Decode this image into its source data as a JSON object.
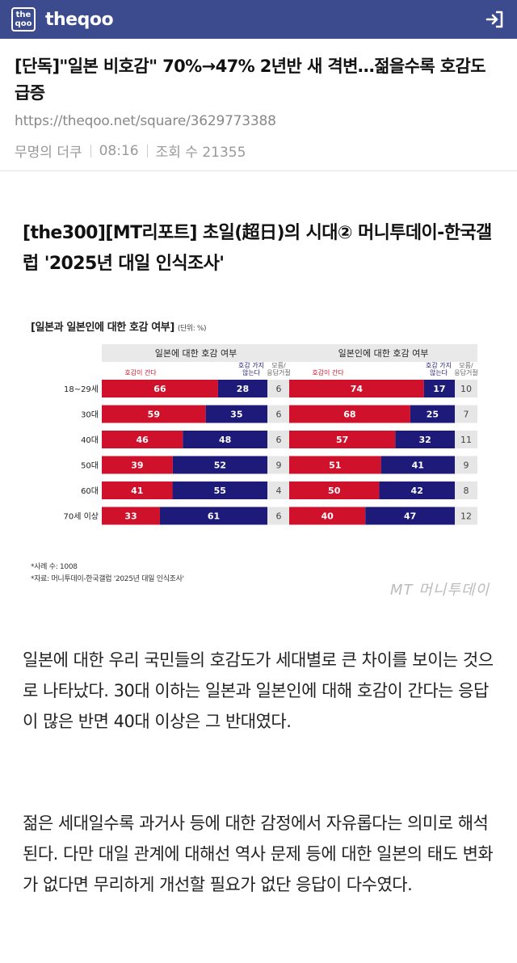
{
  "header": {
    "logo_text_top": "the",
    "logo_text_bottom": "qoo",
    "site_name": "theqoo",
    "login_icon": "login-arrow-icon"
  },
  "post": {
    "title": "[단독]\"일본 비호감\" 70%→47% 2년반 새 격변…젊을수록 호감도 급증",
    "url": "https://theqoo.net/square/3629773388",
    "author": "무명의 더쿠",
    "time": "08:16",
    "views_label": "조회 수 21355"
  },
  "article": {
    "subtitle": "[the300][MT리포트] 초일(超日)의 시대② 머니투데이-한국갤럽 '2025년 대일 인식조사'",
    "paragraphs": [
      "일본에 대한 우리 국민들의 호감도가 세대별로 큰 차이를 보이는 것으로 나타났다. 30대 이하는 일본과 일본인에 대해 호감이 간다는 응답이 많은 반면 40대 이상은 그 반대였다.",
      "젊은 세대일수록 과거사 등에 대한 감정에서 자유롭다는 의미로 해석된다. 다만 대일 관계에 대해선 역사 문제 등에 대한 일본의 태도 변화가 없다면 무리하게 개선할 필요가 없단 응답이 다수였다."
    ]
  },
  "figure": {
    "title": "[일본과 일본인에 대한 호감 여부]",
    "unit": "(단위: %)",
    "note_sample": "*사례 수: 1008",
    "note_source": "*자료: 머니투데이-한국갤럽 '2025년 대일 인식조사'",
    "credit": "MT 머니투데이",
    "colors": {
      "like": "#d0112b",
      "dislike": "#1e1a7a",
      "header_bg": "#e9e9e9"
    }
  },
  "chart_data": [
    {
      "type": "bar",
      "stacked": true,
      "orientation": "horizontal",
      "title": "일본에 대한 호감 여부",
      "categories": [
        "18~29세",
        "30대",
        "40대",
        "50대",
        "60대",
        "70세 이상"
      ],
      "series": [
        {
          "name": "호감이 간다",
          "values": [
            66,
            59,
            46,
            39,
            41,
            33
          ]
        },
        {
          "name": "호감 가지 않는다",
          "values": [
            28,
            35,
            48,
            52,
            55,
            61
          ]
        },
        {
          "name": "모름/응답거절",
          "values": [
            6,
            6,
            6,
            9,
            4,
            6
          ]
        }
      ]
    },
    {
      "type": "bar",
      "stacked": true,
      "orientation": "horizontal",
      "title": "일본인에 대한 호감 여부",
      "categories": [
        "18~29세",
        "30대",
        "40대",
        "50대",
        "60대",
        "70세 이상"
      ],
      "series": [
        {
          "name": "호감이 간다",
          "values": [
            74,
            68,
            57,
            51,
            50,
            40
          ]
        },
        {
          "name": "호감 가지 않는다",
          "values": [
            17,
            25,
            32,
            41,
            42,
            47
          ]
        },
        {
          "name": "모름/응답거절",
          "values": [
            10,
            7,
            11,
            9,
            8,
            12
          ]
        }
      ]
    }
  ]
}
